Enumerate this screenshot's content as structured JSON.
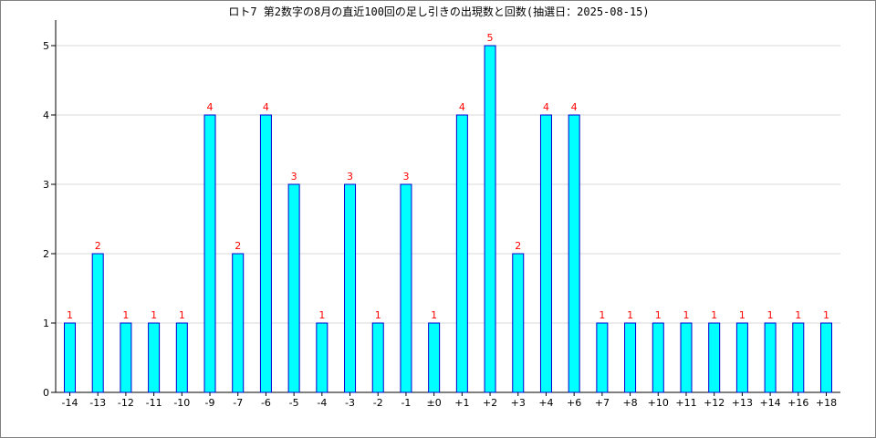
{
  "chart_data": {
    "type": "bar",
    "title": "ロト7 第2数字の8月の直近100回の足し引きの出現数と回数(抽選日：2025-08-15)",
    "xlabel": "",
    "ylabel": "",
    "categories": [
      "-14",
      "-13",
      "-12",
      "-11",
      "-10",
      "-9",
      "-7",
      "-6",
      "-5",
      "-4",
      "-3",
      "-2",
      "-1",
      "±0",
      "+1",
      "+2",
      "+3",
      "+4",
      "+6",
      "+7",
      "+8",
      "+10",
      "+11",
      "+12",
      "+13",
      "+14",
      "+16",
      "+18"
    ],
    "values": [
      1,
      2,
      1,
      1,
      1,
      4,
      2,
      4,
      3,
      1,
      3,
      1,
      3,
      1,
      4,
      5,
      2,
      4,
      4,
      1,
      1,
      1,
      1,
      1,
      1,
      1,
      1,
      1
    ],
    "ylim": [
      0,
      5
    ],
    "yticks": [
      0,
      1,
      2,
      3,
      4,
      5
    ],
    "grid": true,
    "legend": "none",
    "colors": {
      "bar_fill": "#00ffff",
      "bar_stroke": "#0000cc",
      "data_label": "#ff0000",
      "grid": "#d9d9d9",
      "axis": "#000000"
    }
  }
}
